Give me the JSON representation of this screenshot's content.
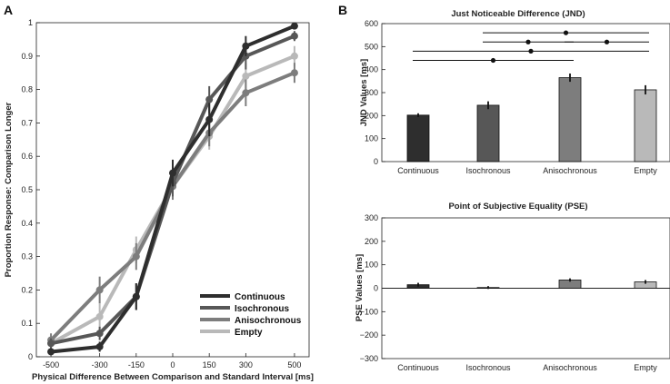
{
  "chart_data": [
    {
      "panel_label": "A",
      "type": "line",
      "title": "",
      "xlabel": "Physical Difference Between Comparison and Standard Interval [ms]",
      "ylabel": "Proportion Response: Comparison Longer",
      "x": [
        -500,
        -300,
        -150,
        0,
        150,
        300,
        500
      ],
      "x_tick_labels": [
        "-500",
        "-300",
        "-150",
        "0",
        "150",
        "300",
        "500"
      ],
      "ylim": [
        0,
        1
      ],
      "y_ticks": [
        0,
        0.1,
        0.2,
        0.3,
        0.4,
        0.5,
        0.6,
        0.7,
        0.8,
        0.9,
        1
      ],
      "y_tick_labels": [
        "0",
        "0.1",
        "0.2",
        "0.3",
        "0.4",
        "0.5",
        "0.6",
        "0.7",
        "0.8",
        "0.9",
        "1"
      ],
      "legend_position": "bottom-right",
      "series": [
        {
          "name": "Continuous",
          "color": "#2e2e2e",
          "values": [
            0.015,
            0.03,
            0.18,
            0.55,
            0.71,
            0.93,
            0.99
          ],
          "errors": [
            0.01,
            0.015,
            0.04,
            0.04,
            0.05,
            0.03,
            0.01
          ]
        },
        {
          "name": "Isochronous",
          "color": "#575757",
          "values": [
            0.04,
            0.07,
            0.18,
            0.52,
            0.77,
            0.9,
            0.96
          ],
          "errors": [
            0.015,
            0.02,
            0.04,
            0.04,
            0.04,
            0.04,
            0.015
          ]
        },
        {
          "name": "Anisochronous",
          "color": "#7d7d7d",
          "values": [
            0.05,
            0.2,
            0.3,
            0.51,
            0.67,
            0.79,
            0.85
          ],
          "errors": [
            0.02,
            0.04,
            0.04,
            0.04,
            0.04,
            0.04,
            0.03
          ]
        },
        {
          "name": "Empty",
          "color": "#b9b9b9",
          "values": [
            0.04,
            0.12,
            0.32,
            0.51,
            0.66,
            0.84,
            0.9
          ],
          "errors": [
            0.015,
            0.04,
            0.04,
            0.04,
            0.04,
            0.04,
            0.03
          ]
        }
      ]
    },
    {
      "panel_label": "B",
      "type": "bar",
      "title": "Just Noticeable Difference (JND)",
      "xlabel": "",
      "ylabel": "JND Values [ms]",
      "categories": [
        "Continuous",
        "Isochronous",
        "Anisochronous",
        "Empty"
      ],
      "values": [
        202,
        245,
        365,
        312
      ],
      "errors": [
        8,
        17,
        18,
        20
      ],
      "colors": [
        "#2e2e2e",
        "#575757",
        "#7d7d7d",
        "#b9b9b9"
      ],
      "ylim": [
        0,
        600
      ],
      "y_ticks": [
        0,
        100,
        200,
        300,
        400,
        500,
        600
      ],
      "y_tick_labels": [
        "0",
        "100",
        "200",
        "300",
        "400",
        "500",
        "600"
      ],
      "significance": [
        {
          "from": 0,
          "to": 2,
          "y": 440
        },
        {
          "from": 0,
          "to": 3,
          "y": 480
        },
        {
          "from": 1,
          "to": 2,
          "y": 520
        },
        {
          "from": 1,
          "to": 3,
          "y": 560
        },
        {
          "from": 2,
          "to": 3,
          "y": 520
        }
      ]
    },
    {
      "panel_label": "",
      "type": "bar",
      "title": "Point of Subjective Equality (PSE)",
      "xlabel": "",
      "ylabel": "PSE Values [ms]",
      "categories": [
        "Continuous",
        "Isochronous",
        "Anisochronous",
        "Empty"
      ],
      "values": [
        15,
        3,
        35,
        27
      ],
      "errors": [
        8,
        6,
        7,
        8
      ],
      "colors": [
        "#2e2e2e",
        "#575757",
        "#7d7d7d",
        "#b9b9b9"
      ],
      "ylim": [
        -300,
        300
      ],
      "y_ticks": [
        -300,
        -200,
        -100,
        0,
        100,
        200,
        300
      ],
      "y_tick_labels": [
        "−300",
        "−200",
        "−100",
        "0",
        "100",
        "200",
        "300"
      ]
    }
  ]
}
